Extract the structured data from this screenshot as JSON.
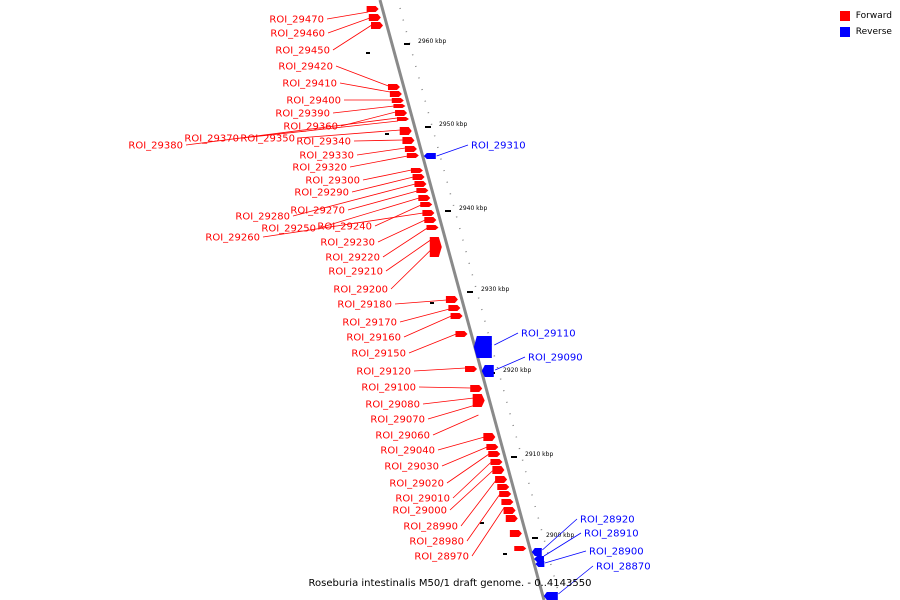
{
  "legend": {
    "forward_label": "Forward",
    "reverse_label": "Reverse",
    "forward_color": "#ff0000",
    "reverse_color": "#0000ff"
  },
  "footer": {
    "caption": "Roseburia intestinalis M50/1 draft genome. - 0..4143550"
  },
  "scale_labels": [
    "2960 kbp",
    "2950 kbp",
    "2940 kbp",
    "2930 kbp",
    "2920 kbp",
    "2910 kbp",
    "2900 kbp"
  ],
  "forward_labels": [
    "ROI_29470",
    "ROI_29460",
    "ROI_29450",
    "ROI_29420",
    "ROI_29410",
    "ROI_29400",
    "ROI_29390",
    "ROI_29360",
    "ROI_29380",
    "ROI_29370",
    "ROI_29350",
    "ROI_29340",
    "ROI_29330",
    "ROI_29320",
    "ROI_29300",
    "ROI_29290",
    "ROI_29280",
    "ROI_29270",
    "ROI_29250",
    "ROI_29240",
    "ROI_29260",
    "ROI_29230",
    "ROI_29220",
    "ROI_29210",
    "ROI_29200",
    "ROI_29180",
    "ROI_29170",
    "ROI_29160",
    "ROI_29150",
    "ROI_29120",
    "ROI_29100",
    "ROI_29080",
    "ROI_29070",
    "ROI_29060",
    "ROI_29040",
    "ROI_29030",
    "ROI_29020",
    "ROI_29010",
    "ROI_29000",
    "ROI_28990",
    "ROI_28980",
    "ROI_28970"
  ],
  "reverse_labels": [
    "ROI_29310",
    "ROI_29110",
    "ROI_29090",
    "ROI_28920",
    "ROI_28910",
    "ROI_28900",
    "ROI_28870"
  ]
}
